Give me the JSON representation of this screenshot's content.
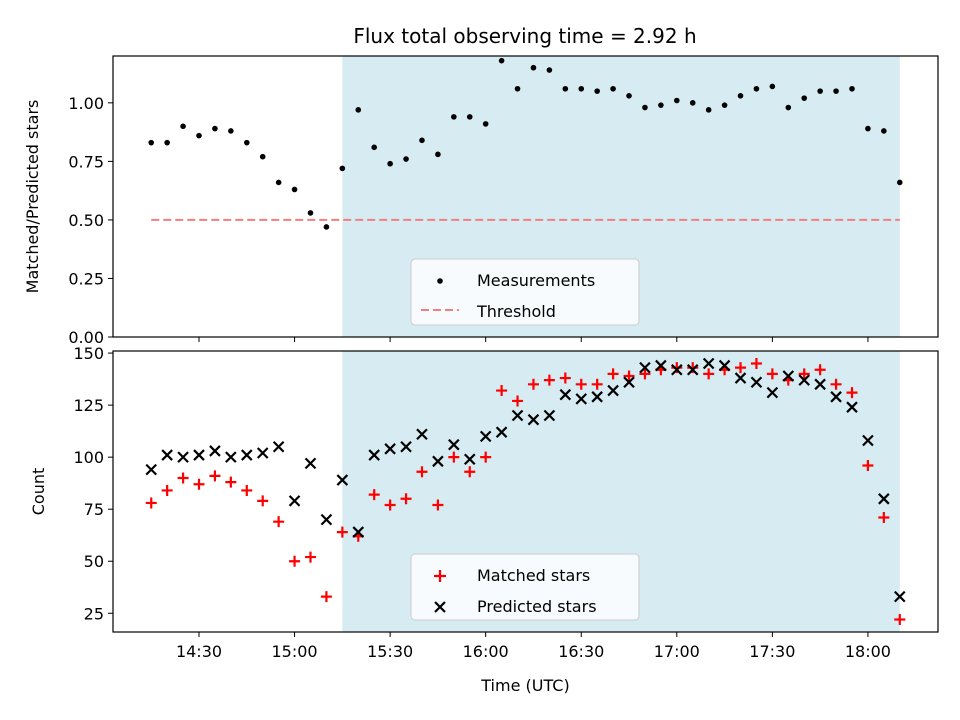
{
  "title": "Flux total observing time = 2.92 h",
  "colors": {
    "span": "#add8e6",
    "measurements": "#000000",
    "threshold": "#f08080",
    "matched": "#ff0000",
    "predicted": "#000000"
  },
  "chart_data": [
    {
      "type": "scatter",
      "ylabel": "Matched/Predicted stars",
      "ylim": [
        0,
        1.2
      ],
      "yticks": [
        0.0,
        0.25,
        0.5,
        0.75,
        1.0
      ],
      "ytick_labels": [
        "0.00",
        "0.25",
        "0.50",
        "0.75",
        "1.00"
      ],
      "highlight_span": [
        "15:15",
        "18:10"
      ],
      "legend": {
        "position": "lower center",
        "entries": [
          "Measurements",
          "Threshold"
        ]
      },
      "threshold": {
        "name": "Threshold",
        "value": 0.5,
        "x_range": [
          "14:15",
          "18:10"
        ],
        "style": "dashed"
      },
      "series": [
        {
          "name": "Measurements",
          "x": [
            "14:15",
            "14:20",
            "14:25",
            "14:30",
            "14:35",
            "14:40",
            "14:45",
            "14:50",
            "14:55",
            "15:00",
            "15:05",
            "15:10",
            "15:15",
            "15:20",
            "15:25",
            "15:30",
            "15:35",
            "15:40",
            "15:45",
            "15:50",
            "15:55",
            "16:00",
            "16:05",
            "16:10",
            "16:15",
            "16:20",
            "16:25",
            "16:30",
            "16:35",
            "16:40",
            "16:45",
            "16:50",
            "16:55",
            "17:00",
            "17:05",
            "17:10",
            "17:15",
            "17:20",
            "17:25",
            "17:30",
            "17:35",
            "17:40",
            "17:45",
            "17:50",
            "17:55",
            "18:00",
            "18:05",
            "18:10"
          ],
          "y": [
            0.83,
            0.83,
            0.9,
            0.86,
            0.89,
            0.88,
            0.83,
            0.77,
            0.66,
            0.63,
            0.53,
            0.47,
            0.72,
            0.97,
            0.81,
            0.74,
            0.76,
            0.84,
            0.78,
            0.94,
            0.94,
            0.91,
            1.18,
            1.06,
            1.15,
            1.14,
            1.06,
            1.06,
            1.05,
            1.06,
            1.03,
            0.98,
            0.99,
            1.01,
            1.0,
            0.97,
            0.99,
            1.03,
            1.06,
            1.07,
            0.98,
            1.02,
            1.05,
            1.05,
            1.06,
            0.89,
            0.88,
            0.66
          ]
        }
      ]
    },
    {
      "type": "scatter",
      "xlabel": "Time (UTC)",
      "ylabel": "Count",
      "ylim": [
        16,
        151
      ],
      "yticks": [
        25,
        50,
        75,
        100,
        125,
        150
      ],
      "xlim": [
        "14:03",
        "18:22"
      ],
      "xticks": [
        "14:30",
        "15:00",
        "15:30",
        "16:00",
        "16:30",
        "17:00",
        "17:30",
        "18:00"
      ],
      "highlight_span": [
        "15:15",
        "18:10"
      ],
      "legend": {
        "position": "lower center",
        "entries": [
          "Matched stars",
          "Predicted stars"
        ]
      },
      "series": [
        {
          "name": "Matched stars",
          "marker": "+",
          "x": [
            "14:15",
            "14:20",
            "14:25",
            "14:30",
            "14:35",
            "14:40",
            "14:45",
            "14:50",
            "14:55",
            "15:00",
            "15:05",
            "15:10",
            "15:15",
            "15:20",
            "15:25",
            "15:30",
            "15:35",
            "15:40",
            "15:45",
            "15:50",
            "15:55",
            "16:00",
            "16:05",
            "16:10",
            "16:15",
            "16:20",
            "16:25",
            "16:30",
            "16:35",
            "16:40",
            "16:45",
            "16:50",
            "16:55",
            "17:00",
            "17:05",
            "17:10",
            "17:15",
            "17:20",
            "17:25",
            "17:30",
            "17:35",
            "17:40",
            "17:45",
            "17:50",
            "17:55",
            "18:00",
            "18:05",
            "18:10"
          ],
          "y": [
            78,
            84,
            90,
            87,
            91,
            88,
            84,
            79,
            69,
            50,
            52,
            33,
            64,
            62,
            82,
            77,
            80,
            93,
            77,
            100,
            93,
            100,
            132,
            127,
            135,
            137,
            138,
            135,
            135,
            140,
            139,
            140,
            142,
            143,
            143,
            140,
            142,
            143,
            145,
            140,
            137,
            140,
            142,
            135,
            131,
            96,
            71,
            22
          ]
        },
        {
          "name": "Predicted stars",
          "marker": "x",
          "x": [
            "14:15",
            "14:20",
            "14:25",
            "14:30",
            "14:35",
            "14:40",
            "14:45",
            "14:50",
            "14:55",
            "15:00",
            "15:05",
            "15:10",
            "15:15",
            "15:20",
            "15:25",
            "15:30",
            "15:35",
            "15:40",
            "15:45",
            "15:50",
            "15:55",
            "16:00",
            "16:05",
            "16:10",
            "16:15",
            "16:20",
            "16:25",
            "16:30",
            "16:35",
            "16:40",
            "16:45",
            "16:50",
            "16:55",
            "17:00",
            "17:05",
            "17:10",
            "17:15",
            "17:20",
            "17:25",
            "17:30",
            "17:35",
            "17:40",
            "17:45",
            "17:50",
            "17:55",
            "18:00",
            "18:05",
            "18:10"
          ],
          "y": [
            94,
            101,
            100,
            101,
            103,
            100,
            101,
            102,
            105,
            79,
            97,
            70,
            89,
            64,
            101,
            104,
            105,
            111,
            98,
            106,
            99,
            110,
            112,
            120,
            118,
            120,
            130,
            128,
            129,
            132,
            136,
            143,
            144,
            142,
            142,
            145,
            144,
            138,
            136,
            131,
            139,
            137,
            135,
            129,
            124,
            108,
            80,
            33
          ]
        }
      ]
    }
  ]
}
